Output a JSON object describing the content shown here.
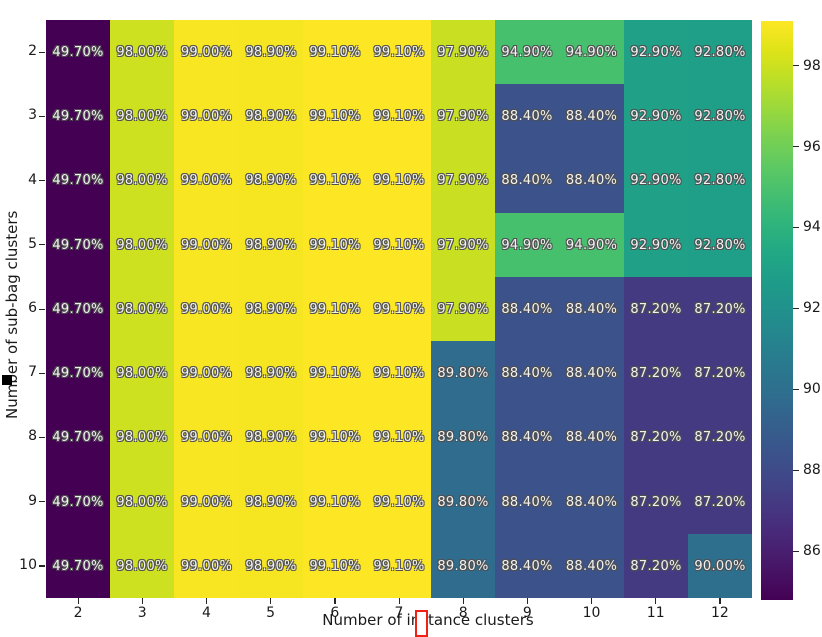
{
  "chart_data": {
    "type": "heatmap",
    "title": "",
    "xlabel": "Number of instance clusters",
    "ylabel": "Number of sub-bag clusters",
    "x_ticklabels": [
      "2",
      "3",
      "4",
      "5",
      "6",
      "7",
      "8",
      "9",
      "10",
      "11",
      "12"
    ],
    "y_ticklabels": [
      "2",
      "3",
      "4",
      "5",
      "6",
      "7",
      "8",
      "9",
      "10"
    ],
    "values": [
      [
        49.7,
        98.0,
        99.0,
        98.9,
        99.1,
        99.1,
        97.9,
        94.9,
        94.9,
        92.9,
        92.8
      ],
      [
        49.7,
        98.0,
        99.0,
        98.9,
        99.1,
        99.1,
        97.9,
        88.4,
        88.4,
        92.9,
        92.8
      ],
      [
        49.7,
        98.0,
        99.0,
        98.9,
        99.1,
        99.1,
        97.9,
        88.4,
        88.4,
        92.9,
        92.8
      ],
      [
        49.7,
        98.0,
        99.0,
        98.9,
        99.1,
        99.1,
        97.9,
        94.9,
        94.9,
        92.9,
        92.8
      ],
      [
        49.7,
        98.0,
        99.0,
        98.9,
        99.1,
        99.1,
        97.9,
        88.4,
        88.4,
        87.2,
        87.2
      ],
      [
        49.7,
        98.0,
        99.0,
        98.9,
        99.1,
        99.1,
        89.8,
        88.4,
        88.4,
        87.2,
        87.2
      ],
      [
        49.7,
        98.0,
        99.0,
        98.9,
        99.1,
        99.1,
        89.8,
        88.4,
        88.4,
        87.2,
        87.2
      ],
      [
        49.7,
        98.0,
        99.0,
        98.9,
        99.1,
        99.1,
        89.8,
        88.4,
        88.4,
        87.2,
        87.2
      ],
      [
        49.7,
        98.0,
        99.0,
        98.9,
        99.1,
        99.1,
        89.8,
        88.4,
        88.4,
        87.2,
        90.0
      ]
    ],
    "cell_label_suffix": "%",
    "cell_label_decimals": 2,
    "colormap": "viridis",
    "vmin": 84.8,
    "vmax": 99.1,
    "colorbar_ticklabels": [
      "98",
      "96",
      "94",
      "92",
      "90",
      "88",
      "86"
    ],
    "colorbar_tick_values": [
      98,
      96,
      94,
      92,
      90,
      88,
      86
    ],
    "viridis_stops": [
      "#440154",
      "#471365",
      "#482475",
      "#463480",
      "#414487",
      "#3b528b",
      "#355f8d",
      "#2f6c8e",
      "#2a788e",
      "#25848e",
      "#21918c",
      "#1e9c89",
      "#22a884",
      "#2fb47c",
      "#44bf70",
      "#5ec962",
      "#7ad151",
      "#9bd93c",
      "#bddf26",
      "#dfe318",
      "#fde725"
    ],
    "grid": false,
    "legend_position": "colorbar-right"
  },
  "artifacts": {
    "ylabel_cursor_color": "#000000",
    "xlabel_cursor_color": "#f02015"
  }
}
